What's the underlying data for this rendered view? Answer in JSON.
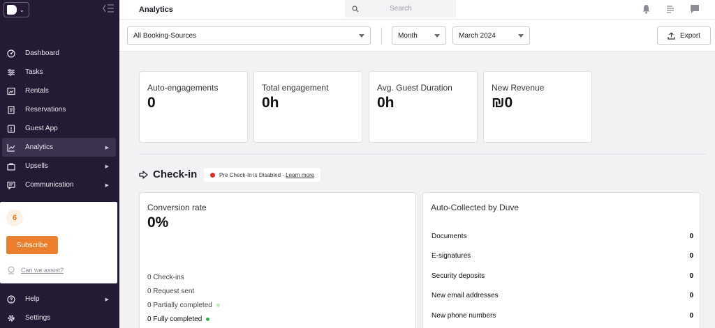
{
  "sidebar": {
    "nav": [
      {
        "label": "Dashboard",
        "icon": "dashboard-icon",
        "arrow": false,
        "active": false
      },
      {
        "label": "Tasks",
        "icon": "tasks-icon",
        "arrow": false,
        "active": false
      },
      {
        "label": "Rentals",
        "icon": "rentals-icon",
        "arrow": false,
        "active": false
      },
      {
        "label": "Reservations",
        "icon": "reservations-icon",
        "arrow": false,
        "active": false
      },
      {
        "label": "Guest App",
        "icon": "guest-app-icon",
        "arrow": false,
        "active": false
      },
      {
        "label": "Analytics",
        "icon": "analytics-icon",
        "arrow": true,
        "active": true
      },
      {
        "label": "Upsells",
        "icon": "upsells-icon",
        "arrow": true,
        "active": false
      },
      {
        "label": "Communication",
        "icon": "communication-icon",
        "arrow": true,
        "active": false
      }
    ],
    "promo": {
      "badge": "6",
      "subscribe_label": "Subscribe",
      "assist_label": "Can we assist?"
    },
    "bottom_nav": [
      {
        "label": "Help",
        "icon": "help-icon",
        "arrow": true
      },
      {
        "label": "Settings",
        "icon": "settings-icon",
        "arrow": false
      }
    ]
  },
  "header": {
    "title": "Analytics",
    "search_placeholder": "Search"
  },
  "filters": {
    "booking_source": "All Booking-Sources",
    "period": "Month",
    "month": "March 2024",
    "export_label": "Export"
  },
  "stats": [
    {
      "label": "Auto-engagements",
      "value": "0"
    },
    {
      "label": "Total engagement",
      "value": "0h"
    },
    {
      "label": "Avg. Guest Duration",
      "value": "0h"
    },
    {
      "label": "New Revenue",
      "value": "₪0"
    }
  ],
  "checkin": {
    "title": "Check-in",
    "notice": "Pre Check-In is Disabled - ",
    "notice_link": "Learn more",
    "conversion": {
      "label": "Conversion rate",
      "value": "0%",
      "metrics": [
        {
          "label": "0 Check-ins",
          "dot": null
        },
        {
          "label": "0 Request sent",
          "dot": null
        },
        {
          "label": "0 Partially completed",
          "dot": "#b8ecc0"
        },
        {
          "label": "0 Fully completed",
          "dot": "#33b24a"
        }
      ]
    },
    "auto_collected": {
      "label": "Auto-Collected by Duve",
      "rows": [
        {
          "label": "Documents",
          "value": "0"
        },
        {
          "label": "E-signatures",
          "value": "0"
        },
        {
          "label": "Security deposits",
          "value": "0"
        },
        {
          "label": "New email addresses",
          "value": "0"
        },
        {
          "label": "New phone numbers",
          "value": "0"
        }
      ]
    }
  },
  "colors": {
    "sidebar_bg": "#241a33",
    "accent_orange": "#ec7f2d",
    "notice_red": "#d9322f"
  }
}
